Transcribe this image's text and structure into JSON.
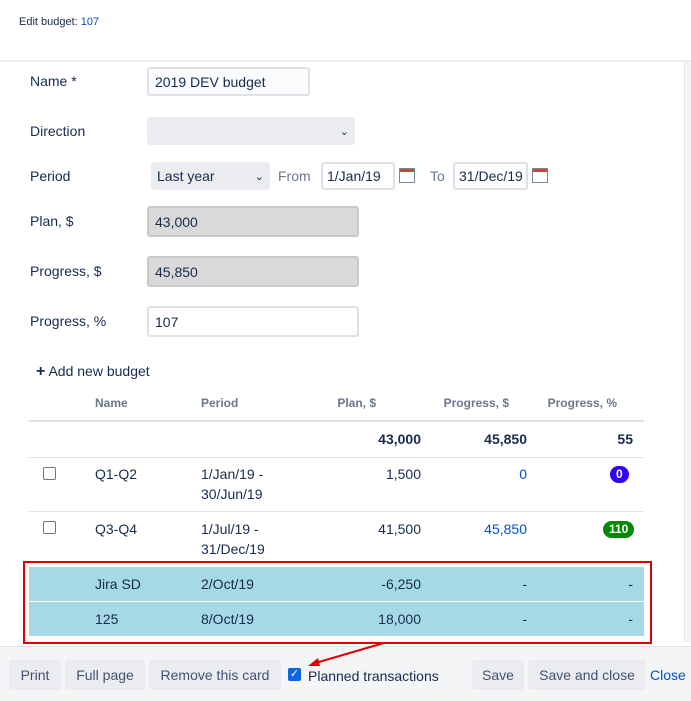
{
  "header": {
    "title_prefix": "Edit budget:",
    "budget_id": "107"
  },
  "form": {
    "name_label": "Name *",
    "name_value": "2019 DEV budget",
    "direction_label": "Direction",
    "direction_value": "",
    "period_label": "Period",
    "period_value": "Last year",
    "from_label": "From",
    "from_value": "1/Jan/19",
    "to_label": "To",
    "to_value": "31/Dec/19",
    "plan_label": "Plan, $",
    "plan_value": "43,000",
    "progress_label": "Progress, $",
    "progress_value": "45,850",
    "progress_pct_label": "Progress, %",
    "progress_pct_value": "107"
  },
  "add_new_budget": "Add new budget",
  "table": {
    "headers": [
      "Name",
      "Period",
      "Plan, $",
      "Progress, $",
      "Progress, %"
    ],
    "totals": {
      "plan": "43,000",
      "progress": "45,850",
      "pct": "55"
    },
    "rows": [
      {
        "name": "Q1-Q2",
        "period1": "1/Jan/19 -",
        "period2": "30/Jun/19",
        "plan": "1,500",
        "progress": "0",
        "pct": "0",
        "badge_color": "#3300ff"
      },
      {
        "name": "Q3-Q4",
        "period1": "1/Jul/19 -",
        "period2": "31/Dec/19",
        "plan": "41,500",
        "progress": "45,850",
        "pct": "110",
        "badge_color": "#008a00"
      }
    ],
    "planned": [
      {
        "name": "Jira SD",
        "date": "2/Oct/19",
        "plan": "-6,250",
        "progress": "-",
        "pct": "-"
      },
      {
        "name": "125",
        "date": "8/Oct/19",
        "plan": "18,000",
        "progress": "-",
        "pct": "-"
      }
    ]
  },
  "footer": {
    "print": "Print",
    "full_page": "Full page",
    "remove": "Remove this card",
    "planned_label": "Planned transactions",
    "planned_checked": true,
    "save": "Save",
    "save_close": "Save and close",
    "close": "Close"
  },
  "colors": {
    "highlight": "#a6d9e6",
    "annotation": "#e00000",
    "link": "#0052cc"
  }
}
